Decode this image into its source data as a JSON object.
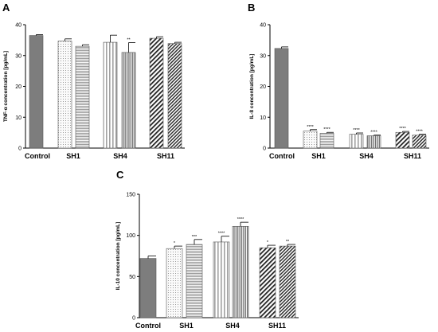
{
  "chart_data": [
    {
      "panel": "A",
      "type": "bar",
      "ylabel": "TNF-α concentration [pg/mL]",
      "ylim": [
        0,
        40
      ],
      "yticks": [
        0,
        10,
        20,
        30,
        40
      ],
      "groups": [
        "Control",
        "SH1",
        "SH4",
        "SH11"
      ],
      "bars": [
        {
          "group": "Control",
          "value": 36.5,
          "error": 0.3,
          "pattern": "solid",
          "sig": ""
        },
        {
          "group": "SH1",
          "value": 34.7,
          "error": 0.7,
          "pattern": "dots",
          "sig": ""
        },
        {
          "group": "SH1",
          "value": 33.0,
          "error": 0.5,
          "pattern": "hlines",
          "sig": ""
        },
        {
          "group": "SH4",
          "value": 34.3,
          "error": 2.3,
          "pattern": "vlines",
          "sig": ""
        },
        {
          "group": "SH4",
          "value": 31.0,
          "error": 3.2,
          "pattern": "vlines-dense",
          "sig": "**"
        },
        {
          "group": "SH11",
          "value": 35.6,
          "error": 0.5,
          "pattern": "diag",
          "sig": ""
        },
        {
          "group": "SH11",
          "value": 33.9,
          "error": 0.4,
          "pattern": "diag-dense",
          "sig": ""
        }
      ]
    },
    {
      "panel": "B",
      "type": "bar",
      "ylabel": "IL-8 concentration [pg/mL]",
      "ylim": [
        0,
        40
      ],
      "yticks": [
        0,
        10,
        20,
        30,
        40
      ],
      "groups": [
        "Control",
        "SH1",
        "SH4",
        "SH11"
      ],
      "bars": [
        {
          "group": "Control",
          "value": 32.3,
          "error": 0.5,
          "pattern": "solid",
          "sig": ""
        },
        {
          "group": "SH1",
          "value": 5.5,
          "error": 0.5,
          "pattern": "dots",
          "sig": "****"
        },
        {
          "group": "SH1",
          "value": 4.8,
          "error": 0.3,
          "pattern": "hlines",
          "sig": "****"
        },
        {
          "group": "SH4",
          "value": 4.5,
          "error": 0.4,
          "pattern": "vlines",
          "sig": "****"
        },
        {
          "group": "SH4",
          "value": 4.0,
          "error": 0.2,
          "pattern": "vlines-dense",
          "sig": "****"
        },
        {
          "group": "SH11",
          "value": 5.1,
          "error": 0.3,
          "pattern": "diag",
          "sig": "****"
        },
        {
          "group": "SH11",
          "value": 4.2,
          "error": 0.3,
          "pattern": "diag-dense",
          "sig": "****"
        }
      ]
    },
    {
      "panel": "C",
      "type": "bar",
      "ylabel": "IL-10 concentration [pg/mL]",
      "ylim": [
        0,
        150
      ],
      "yticks": [
        0,
        50,
        100,
        150
      ],
      "groups": [
        "Control",
        "SH1",
        "SH4",
        "SH11"
      ],
      "bars": [
        {
          "group": "Control",
          "value": 72,
          "error": 3,
          "pattern": "solid",
          "sig": ""
        },
        {
          "group": "SH1",
          "value": 84,
          "error": 3,
          "pattern": "dots",
          "sig": "*"
        },
        {
          "group": "SH1",
          "value": 89,
          "error": 6,
          "pattern": "hlines",
          "sig": "***"
        },
        {
          "group": "SH4",
          "value": 92,
          "error": 7,
          "pattern": "vlines",
          "sig": "****"
        },
        {
          "group": "SH4",
          "value": 111,
          "error": 5,
          "pattern": "vlines-dense",
          "sig": "****"
        },
        {
          "group": "SH11",
          "value": 85,
          "error": 3,
          "pattern": "diag",
          "sig": "*"
        },
        {
          "group": "SH11",
          "value": 87,
          "error": 2,
          "pattern": "diag-dense",
          "sig": "**"
        }
      ]
    }
  ]
}
